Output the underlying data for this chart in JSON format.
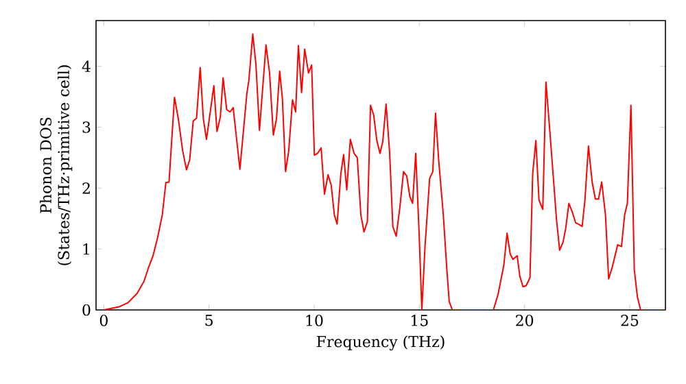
{
  "chart_data": {
    "type": "line",
    "xlabel": "Frequency (THz)",
    "ylabel": "Phonon DOS (States/THz·primitive cell)",
    "xlim": [
      -0.37,
      26.7
    ],
    "ylim": [
      0,
      4.75
    ],
    "xticks": [
      0,
      5,
      10,
      15,
      20,
      25
    ],
    "yticks": [
      0,
      1,
      2,
      3,
      4
    ],
    "grid": false,
    "marker": "none",
    "line_style": "solid",
    "series": [
      {
        "color": "#ff0000",
        "x": [
          0,
          0.71,
          1.15,
          1.58,
          1.91,
          2.13,
          2.34,
          2.56,
          2.78,
          2.95,
          3.1,
          3.36,
          3.54,
          3.75,
          3.93,
          4.08,
          4.25,
          4.41,
          4.58,
          4.73,
          4.88,
          5.06,
          5.23,
          5.38,
          5.54,
          5.67,
          5.84,
          6.0,
          6.15,
          6.47,
          6.8,
          6.9,
          7.08,
          7.23,
          7.4,
          7.71,
          7.88,
          8.06,
          8.21,
          8.36,
          8.49,
          8.64,
          8.79,
          8.97,
          9.12,
          9.25,
          9.4,
          9.55,
          9.73,
          9.88,
          10.01,
          10.16,
          10.33,
          10.49,
          10.66,
          10.81,
          10.96,
          11.09,
          11.27,
          11.4,
          11.55,
          11.72,
          11.9,
          12.05,
          12.22,
          12.37,
          12.53,
          12.68,
          12.83,
          12.98,
          13.13,
          13.26,
          13.42,
          13.59,
          13.74,
          13.9,
          14.07,
          14.25,
          14.4,
          14.55,
          14.68,
          14.83,
          14.99,
          15.12,
          15.27,
          15.49,
          15.64,
          15.77,
          15.92,
          16.14,
          16.31,
          16.42,
          16.57,
          18.52,
          18.74,
          19.02,
          19.17,
          19.32,
          19.45,
          19.65,
          19.78,
          19.93,
          20.08,
          20.26,
          20.39,
          20.54,
          20.69,
          20.87,
          21.02,
          21.19,
          21.35,
          21.52,
          21.67,
          21.83,
          21.96,
          22.11,
          22.26,
          22.43,
          22.61,
          22.74,
          22.87,
          23.04,
          23.22,
          23.37,
          23.52,
          23.67,
          23.85,
          24.0,
          24.17,
          24.43,
          24.61,
          24.76,
          24.89,
          25.06,
          25.22,
          25.37,
          25.52,
          26.67
        ],
        "values": [
          0,
          0.05,
          0.12,
          0.27,
          0.47,
          0.7,
          0.89,
          1.19,
          1.56,
          2.09,
          2.1,
          3.49,
          3.14,
          2.61,
          2.3,
          2.46,
          3.1,
          3.15,
          3.98,
          3.14,
          2.8,
          3.25,
          3.68,
          2.93,
          3.17,
          3.81,
          3.29,
          3.25,
          3.32,
          2.31,
          3.55,
          3.78,
          4.53,
          4.04,
          2.95,
          4.35,
          3.89,
          2.87,
          3.14,
          3.92,
          3.47,
          2.27,
          2.61,
          3.45,
          3.25,
          4.34,
          3.57,
          4.28,
          3.89,
          4.02,
          2.54,
          2.57,
          2.66,
          1.9,
          2.22,
          2.05,
          1.56,
          1.41,
          2.24,
          2.55,
          1.97,
          2.8,
          2.57,
          2.5,
          1.56,
          1.28,
          1.45,
          3.36,
          3.2,
          2.78,
          2.57,
          2.76,
          3.38,
          2.57,
          1.37,
          1.21,
          1.67,
          2.27,
          2.2,
          1.86,
          1.75,
          2.57,
          1.26,
          0,
          1.04,
          2.16,
          2.27,
          3.23,
          2.46,
          1.56,
          0.66,
          0.14,
          0,
          0,
          0.25,
          0.74,
          1.26,
          0.92,
          0.83,
          0.89,
          0.55,
          0.38,
          0.4,
          0.53,
          2.24,
          2.78,
          1.8,
          1.65,
          3.74,
          3.0,
          2.27,
          1.49,
          0.98,
          1.11,
          1.34,
          1.75,
          1.62,
          1.43,
          1.4,
          1.37,
          1.79,
          2.69,
          2.09,
          1.82,
          1.82,
          2.1,
          1.56,
          0.51,
          0.7,
          1.07,
          1.04,
          1.56,
          1.75,
          3.36,
          0.66,
          0.21,
          0,
          0
        ]
      }
    ]
  }
}
